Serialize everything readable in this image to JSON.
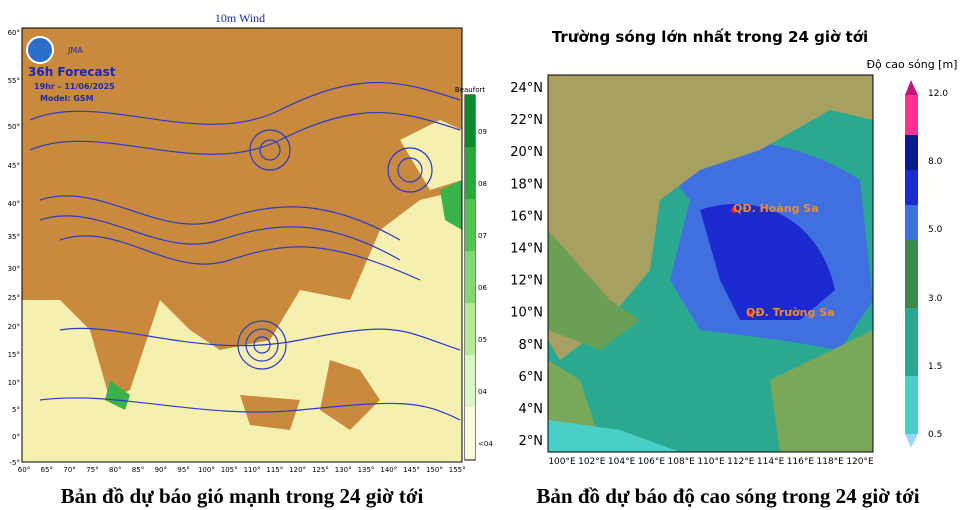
{
  "left_map": {
    "title": "10m Wind",
    "agency": "JMA",
    "forecast": "36h Forecast",
    "time": "19hr – 11/06/2025",
    "model": "Model: GSM",
    "scale_title": "Beaufort",
    "scale_labels": [
      "09",
      "08",
      "07",
      "06",
      "05",
      "04",
      "<04"
    ],
    "lat_labels": [
      "60°",
      "55°",
      "50°",
      "45°",
      "40°",
      "35°",
      "30°",
      "25°",
      "20°",
      "15°",
      "10°",
      "5°",
      "0°",
      "-5°"
    ],
    "lon_labels": [
      "60°",
      "65°",
      "70°",
      "75°",
      "80°",
      "85°",
      "90°",
      "95°",
      "100°",
      "105°",
      "110°",
      "115°",
      "120°",
      "125°",
      "130°",
      "135°",
      "140°",
      "145°",
      "150°",
      "155°"
    ],
    "caption": "Bản đồ dự báo gió mạnh trong 24 giờ tới"
  },
  "right_map": {
    "title": "Trường sóng lớn nhất trong 24 giờ tới",
    "scale_title": "Độ cao sóng [m]",
    "scale_labels": [
      "12.0",
      "8.0",
      "5.0",
      "3.0",
      "1.5",
      "0.5"
    ],
    "lat_labels": [
      "24°N",
      "22°N",
      "20°N",
      "18°N",
      "16°N",
      "14°N",
      "12°N",
      "10°N",
      "8°N",
      "6°N",
      "4°N",
      "2°N"
    ],
    "lon_labels": [
      "100°E",
      "102°E",
      "104°E",
      "106°E",
      "108°E",
      "110°E",
      "112°E",
      "114°E",
      "116°E",
      "118°E",
      "120°E"
    ],
    "places": [
      "QĐ. Hoàng Sa",
      "QĐ. Trường Sa"
    ],
    "caption": "Bản đồ dự báo độ cao sóng trong 24 giờ tới"
  }
}
